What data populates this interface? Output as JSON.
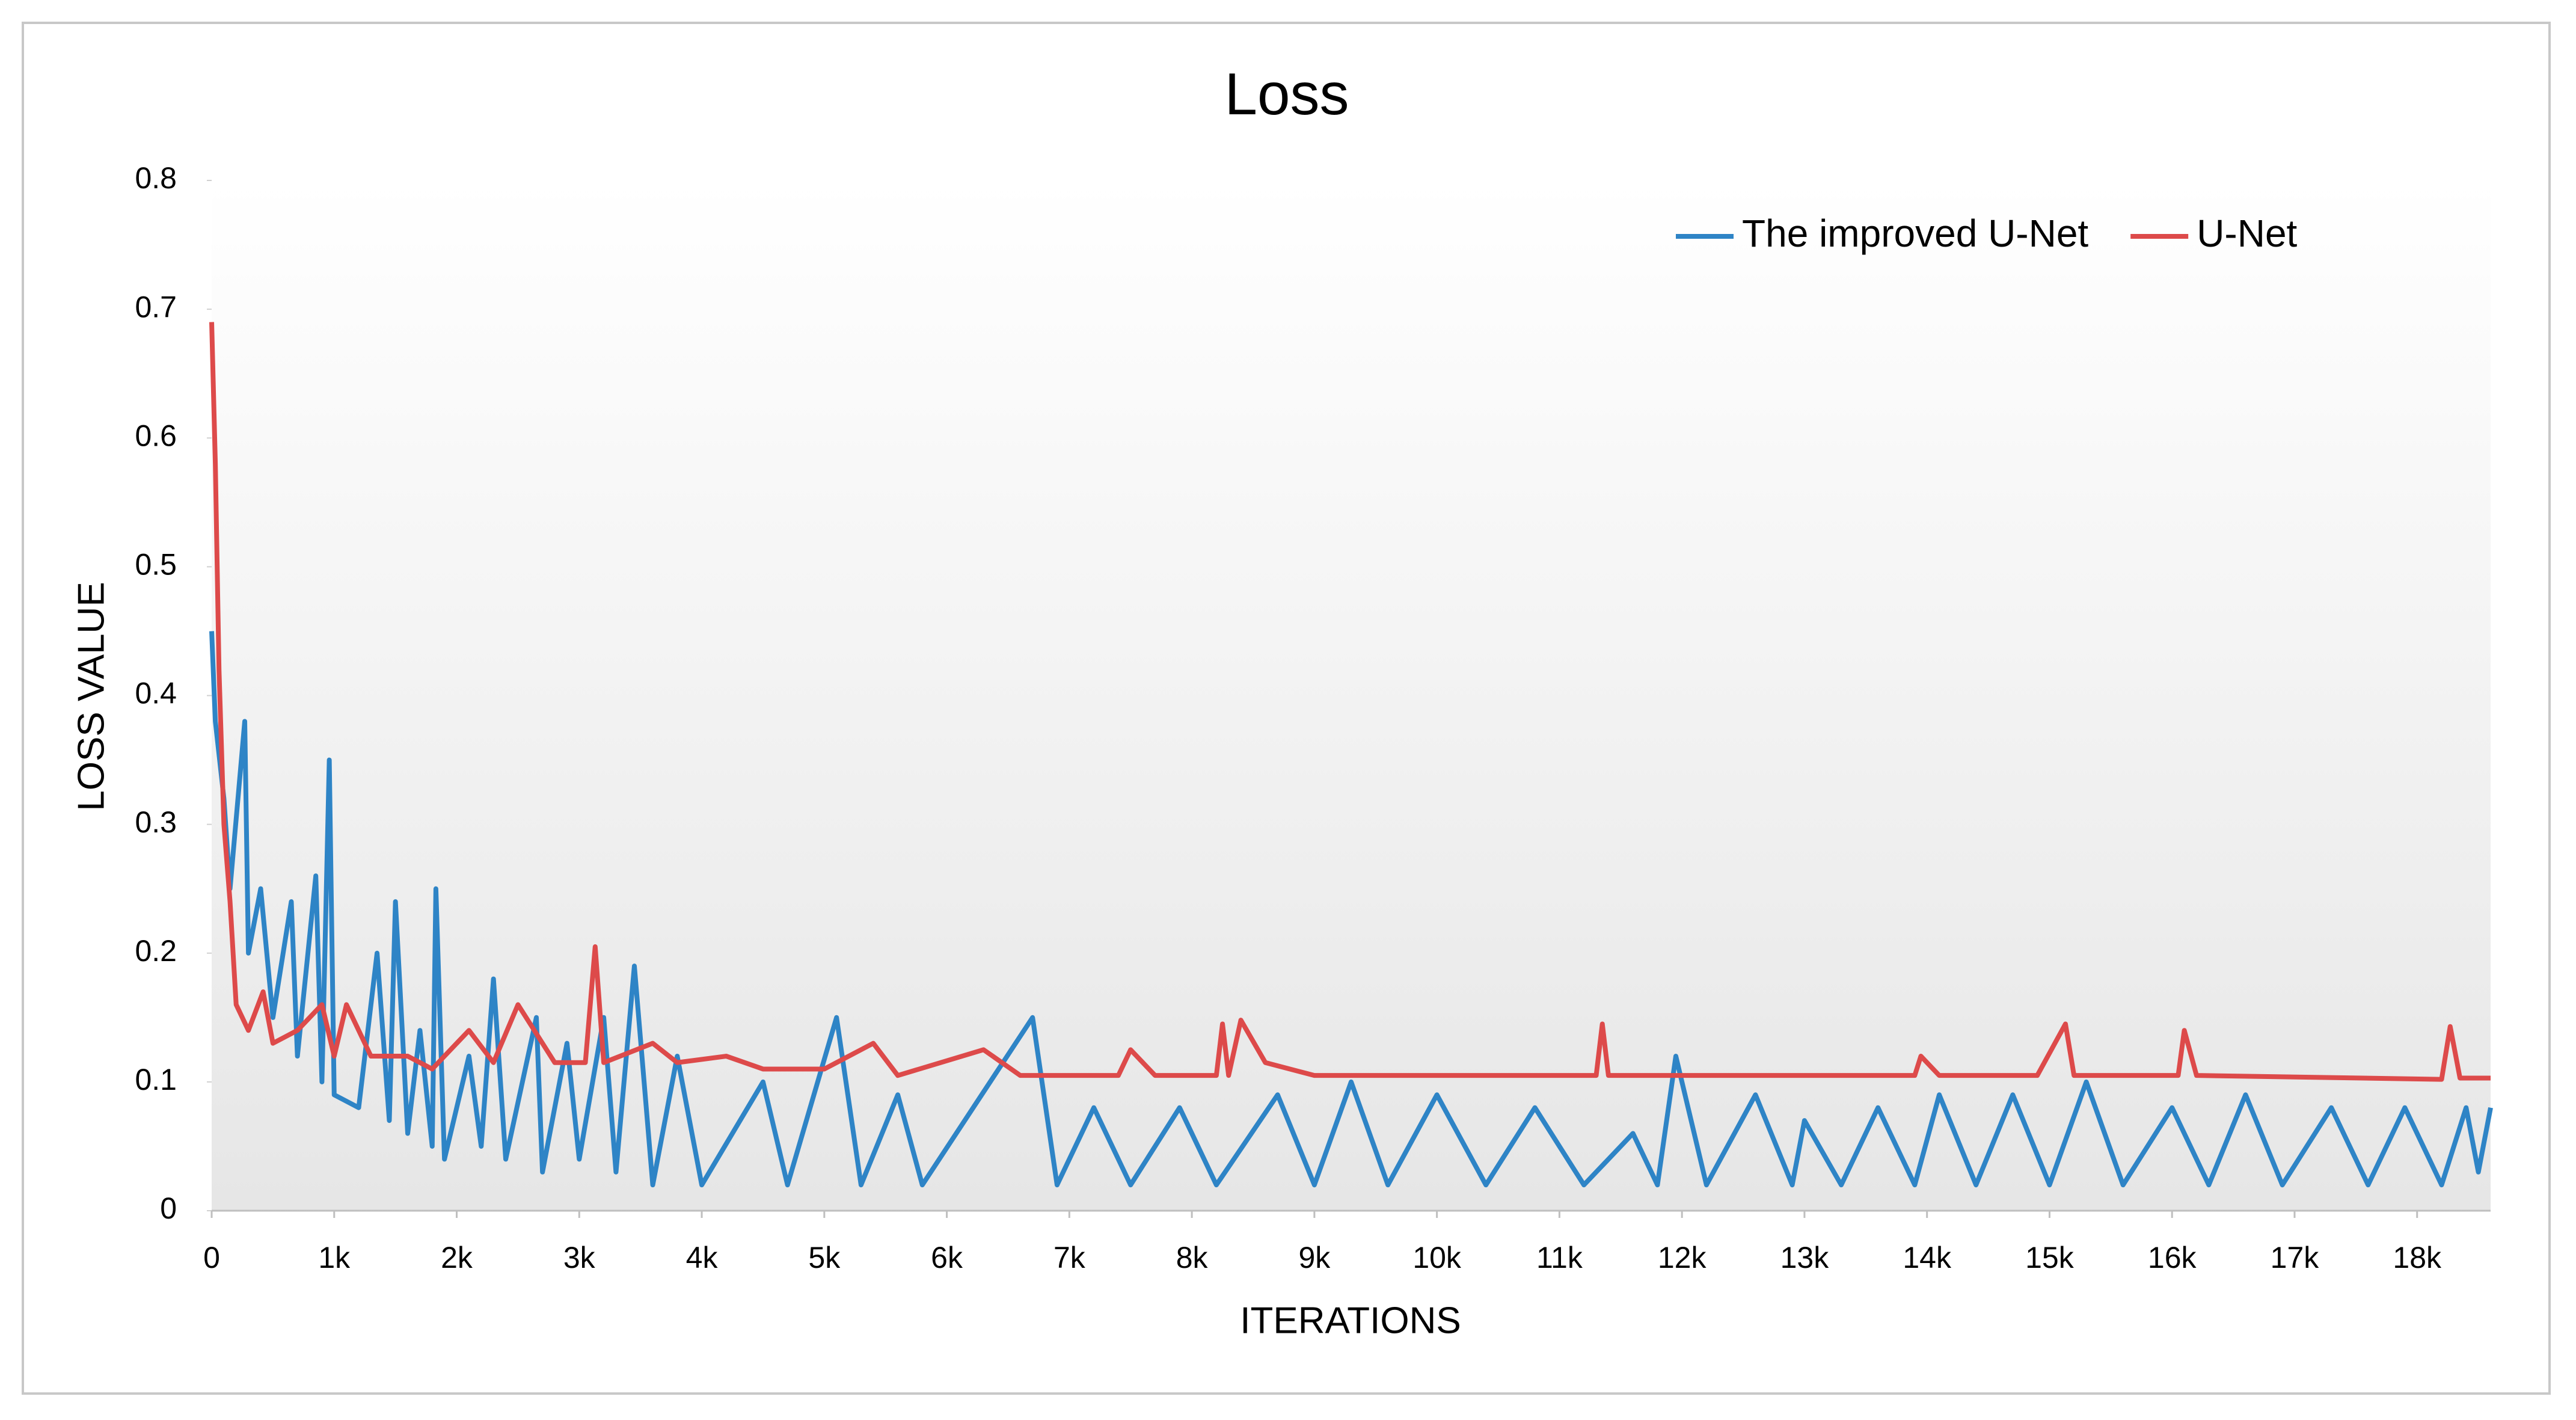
{
  "chart_data": {
    "type": "line",
    "title": "Loss",
    "x_label": "ITERATIONS",
    "y_label": "LOSS VALUE",
    "xlim": [
      0,
      18600
    ],
    "ylim": [
      0,
      0.8
    ],
    "xticks": [
      0,
      {
        "value": 1000,
        "label": "1k"
      },
      {
        "value": 2000,
        "label": "2k"
      },
      {
        "value": 3000,
        "label": "3k"
      },
      {
        "value": 4000,
        "label": "4k"
      },
      {
        "value": 5000,
        "label": "5k"
      },
      {
        "value": 6000,
        "label": "6k"
      },
      {
        "value": 7000,
        "label": "7k"
      },
      {
        "value": 8000,
        "label": "8k"
      },
      {
        "value": 9000,
        "label": "9k"
      },
      {
        "value": 10000,
        "label": "10k"
      },
      {
        "value": 11000,
        "label": "11k"
      },
      {
        "value": 12000,
        "label": "12k"
      },
      {
        "value": 13000,
        "label": "13k"
      },
      {
        "value": 14000,
        "label": "14k"
      },
      {
        "value": 15000,
        "label": "15k"
      },
      {
        "value": 16000,
        "label": "16k"
      },
      {
        "value": 17000,
        "label": "17k"
      },
      {
        "value": 18000,
        "label": "18k"
      }
    ],
    "yticks": [
      0,
      0.1,
      0.2,
      0.3,
      0.4,
      0.5,
      0.6,
      0.7,
      0.8
    ],
    "legend": "upper right",
    "series": [
      {
        "name": "The improved U-Net",
        "color": "#2e84c6",
        "x": [
          0,
          30,
          100,
          150,
          270,
          300,
          400,
          500,
          650,
          700,
          850,
          900,
          960,
          1000,
          1200,
          1350,
          1450,
          1500,
          1600,
          1700,
          1800,
          1830,
          1900,
          2100,
          2200,
          2300,
          2400,
          2650,
          2700,
          2900,
          3000,
          3200,
          3300,
          3450,
          3600,
          3800,
          4000,
          4500,
          4700,
          5100,
          5300,
          5600,
          5800,
          6700,
          6900,
          7200,
          7500,
          7900,
          8200,
          8700,
          9000,
          9300,
          9600,
          10000,
          10400,
          10800,
          11200,
          11600,
          11800,
          11950,
          12200,
          12600,
          12900,
          13000,
          13300,
          13600,
          13900,
          14100,
          14400,
          14700,
          15000,
          15300,
          15600,
          16000,
          16300,
          16600,
          16900,
          17300,
          17600,
          17900,
          18200,
          18400,
          18500,
          18600
        ],
        "values": [
          0.45,
          0.38,
          0.32,
          0.25,
          0.38,
          0.2,
          0.25,
          0.15,
          0.24,
          0.12,
          0.26,
          0.1,
          0.35,
          0.09,
          0.08,
          0.2,
          0.07,
          0.24,
          0.06,
          0.14,
          0.05,
          0.25,
          0.04,
          0.12,
          0.05,
          0.18,
          0.04,
          0.15,
          0.03,
          0.13,
          0.04,
          0.15,
          0.03,
          0.19,
          0.02,
          0.12,
          0.02,
          0.1,
          0.02,
          0.15,
          0.02,
          0.09,
          0.02,
          0.15,
          0.02,
          0.08,
          0.02,
          0.08,
          0.02,
          0.09,
          0.02,
          0.1,
          0.02,
          0.09,
          0.02,
          0.08,
          0.02,
          0.06,
          0.02,
          0.12,
          0.02,
          0.09,
          0.02,
          0.07,
          0.02,
          0.08,
          0.02,
          0.09,
          0.02,
          0.09,
          0.02,
          0.1,
          0.02,
          0.08,
          0.02,
          0.09,
          0.02,
          0.08,
          0.02,
          0.08,
          0.02,
          0.08,
          0.03,
          0.08
        ]
      },
      {
        "name": "U-Net",
        "color": "#dd4a4a",
        "x": [
          0,
          30,
          60,
          100,
          150,
          200,
          300,
          420,
          500,
          700,
          900,
          1000,
          1100,
          1300,
          1600,
          1800,
          2100,
          2300,
          2500,
          2800,
          3050,
          3130,
          3200,
          3600,
          3800,
          4200,
          4500,
          5000,
          5400,
          5600,
          6300,
          6600,
          7400,
          7500,
          7700,
          8200,
          8250,
          8300,
          8400,
          8600,
          9000,
          11300,
          11350,
          11400,
          13900,
          13950,
          14100,
          14900,
          15130,
          15200,
          16050,
          16100,
          16200,
          18200,
          18270,
          18350,
          18600
        ],
        "values": [
          0.69,
          0.58,
          0.42,
          0.3,
          0.24,
          0.16,
          0.14,
          0.17,
          0.13,
          0.14,
          0.16,
          0.12,
          0.16,
          0.12,
          0.12,
          0.11,
          0.14,
          0.115,
          0.16,
          0.115,
          0.115,
          0.205,
          0.115,
          0.13,
          0.115,
          0.12,
          0.11,
          0.11,
          0.13,
          0.105,
          0.125,
          0.105,
          0.105,
          0.125,
          0.105,
          0.105,
          0.145,
          0.105,
          0.148,
          0.115,
          0.105,
          0.105,
          0.145,
          0.105,
          0.105,
          0.12,
          0.105,
          0.105,
          0.145,
          0.105,
          0.105,
          0.14,
          0.105,
          0.102,
          0.143,
          0.103,
          0.103
        ]
      }
    ]
  }
}
